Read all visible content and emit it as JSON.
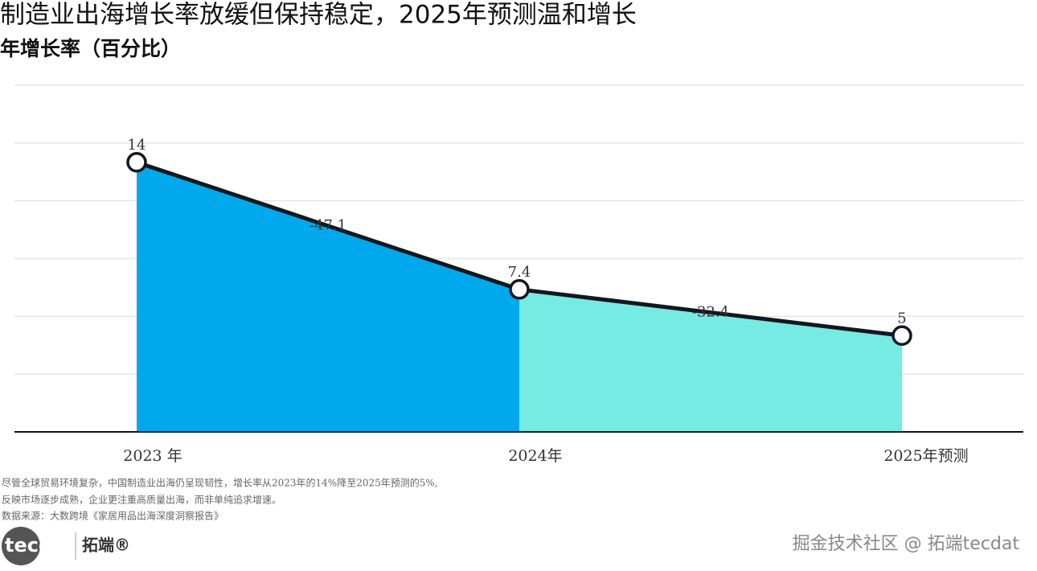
{
  "chart_data": {
    "type": "area-line",
    "title": "制造业出海增长率放缓但保持稳定，2025年预测温和增长",
    "subtitle": "年增长率（百分比）",
    "categories": [
      "2023 年",
      "2024年",
      "2025年预测"
    ],
    "values": [
      14,
      7.4,
      5
    ],
    "segment_labels": [
      "-47.1",
      "-32.4"
    ],
    "area_colors": [
      "#00a8ec",
      "#76ebe3"
    ],
    "line_color": "#101820",
    "ylim": [
      0,
      18
    ],
    "yticks": [
      0,
      3,
      6,
      9,
      12,
      15,
      18
    ],
    "grid": true,
    "notes": [
      "尽管全球贸易环境复杂，中国制造业出海仍呈现韧性，增长率从2023年的14%降至2025年预测的5%,",
      "反映市场逐步成熟，企业更注重高质量出海，而非单纯追求增速。"
    ],
    "source": "数据来源：大数跨境《家居用品出海深度洞察报告》"
  },
  "logo": {
    "brand": "tecdat",
    "name": "拓端®"
  },
  "watermark": "掘金技术社区 @ 拓端tecdat"
}
